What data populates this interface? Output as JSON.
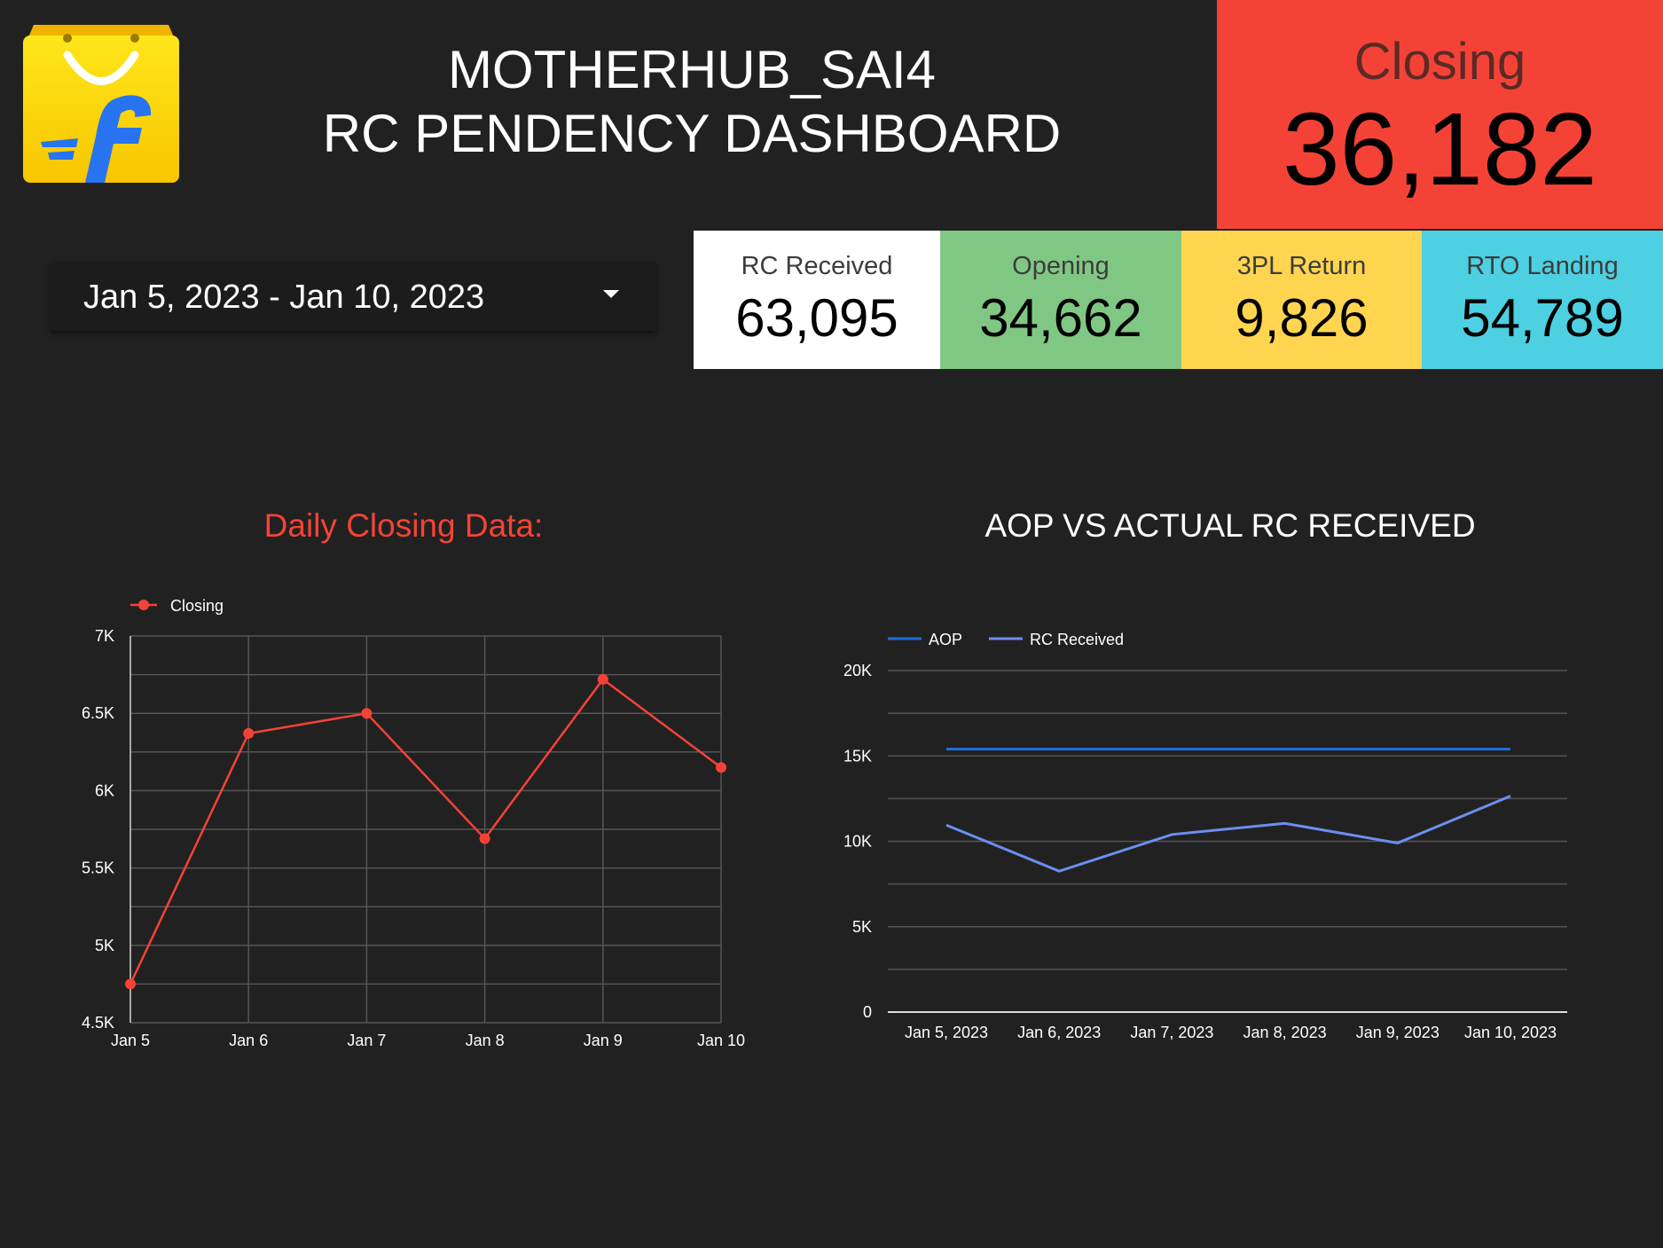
{
  "header": {
    "title_line1": "MOTHERHUB_SAI4",
    "title_line2": "RC PENDENCY DASHBOARD",
    "logo_icon": "flipkart-shopping-bag-icon"
  },
  "closing": {
    "label": "Closing",
    "value": "36,182"
  },
  "date_range": {
    "value": "Jan 5, 2023 - Jan 10, 2023"
  },
  "kpis": [
    {
      "label": "RC Received",
      "value": "63,095",
      "color": "#ffffff"
    },
    {
      "label": "Opening",
      "value": "34,662",
      "color": "#81c784"
    },
    {
      "label": "3PL Return",
      "value": "9,826",
      "color": "#ffd54f"
    },
    {
      "label": "RTO Landing",
      "value": "54,789",
      "color": "#4dd0e1"
    }
  ],
  "chart_data": [
    {
      "type": "line",
      "title": "Daily Closing Data:",
      "categories": [
        "Jan 5",
        "Jan 6",
        "Jan 7",
        "Jan 8",
        "Jan 9",
        "Jan 10"
      ],
      "series": [
        {
          "name": "Closing",
          "color": "#f44336",
          "values": [
            4750,
            6370,
            6500,
            5690,
            6720,
            6150
          ]
        }
      ],
      "ylim": [
        4500,
        7000
      ],
      "yticks": [
        "4.5K",
        "5K",
        "5.5K",
        "6K",
        "6.5K",
        "7K"
      ],
      "grid": true,
      "legend": "top-left"
    },
    {
      "type": "line",
      "title": "AOP VS ACTUAL RC RECEIVED",
      "categories": [
        "Jan 5, 2023",
        "Jan 6, 2023",
        "Jan 7, 2023",
        "Jan 8, 2023",
        "Jan 9, 2023",
        "Jan 10, 2023"
      ],
      "series": [
        {
          "name": "AOP",
          "color": "#1e6fd9",
          "values": [
            15400,
            15400,
            15400,
            15400,
            15400,
            15400
          ]
        },
        {
          "name": "RC Received",
          "color": "#6b8ff0",
          "values": [
            10950,
            8250,
            10400,
            11050,
            9900,
            12650
          ]
        }
      ],
      "ylim": [
        0,
        20000
      ],
      "yticks": [
        "0",
        "5K",
        "10K",
        "15K",
        "20K"
      ],
      "grid": true,
      "legend": "top-left"
    }
  ]
}
